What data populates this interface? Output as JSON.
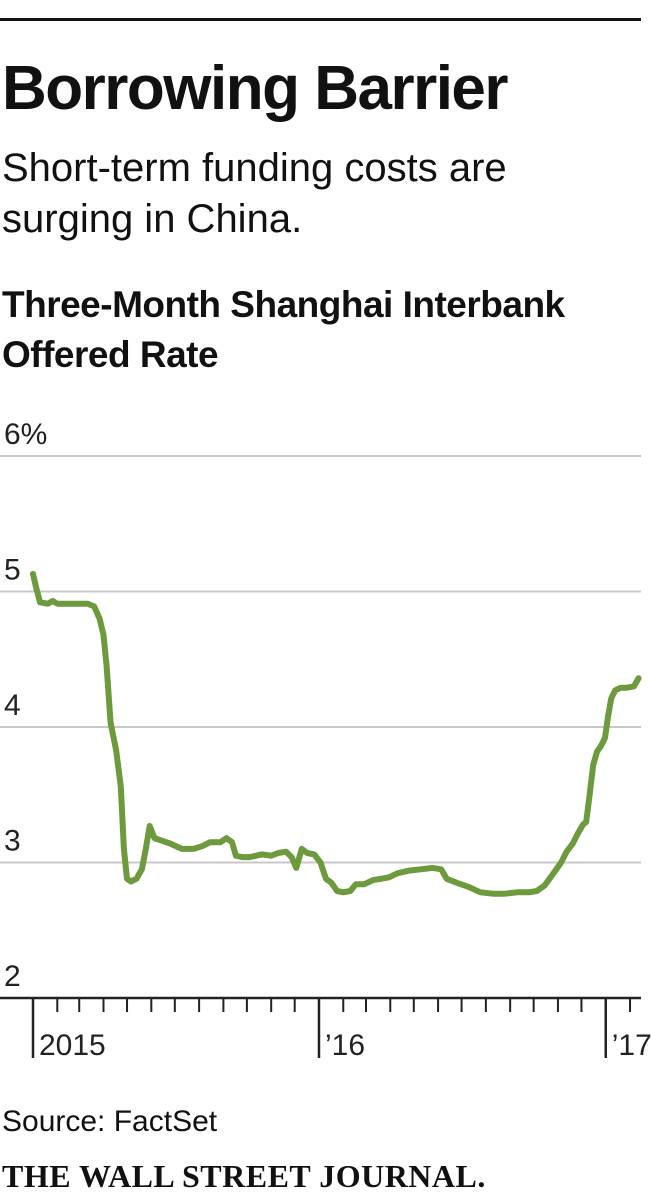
{
  "header": {
    "title": "Borrowing Barrier",
    "subtitle": "Short-term funding costs are surging in China."
  },
  "chart_data": {
    "type": "line",
    "title": "Three-Month Shanghai Interbank Offered Rate",
    "xlabel": "",
    "ylabel": "",
    "ylim": [
      2,
      6
    ],
    "xlim": [
      "2015-01-01",
      "2017-02-15"
    ],
    "y_ticks": [
      {
        "value": 6,
        "label": "6%"
      },
      {
        "value": 5,
        "label": "5"
      },
      {
        "value": 4,
        "label": "4"
      },
      {
        "value": 3,
        "label": "3"
      },
      {
        "value": 2,
        "label": "2"
      }
    ],
    "x_major_ticks": [
      {
        "date": "2015-01-01",
        "label": "2015"
      },
      {
        "date": "2016-01-01",
        "label": "’16"
      },
      {
        "date": "2017-01-01",
        "label": "’17"
      }
    ],
    "grid": true,
    "colors": {
      "series": "#6c9a3c",
      "grid": "#c8c8c8",
      "axis": "#222222"
    },
    "series": [
      {
        "name": "",
        "points": [
          [
            "2015-01-01",
            5.13
          ],
          [
            "2015-01-05",
            5.03
          ],
          [
            "2015-01-10",
            4.92
          ],
          [
            "2015-01-20",
            4.91
          ],
          [
            "2015-01-26",
            4.93
          ],
          [
            "2015-02-01",
            4.91
          ],
          [
            "2015-02-15",
            4.91
          ],
          [
            "2015-03-01",
            4.91
          ],
          [
            "2015-03-12",
            4.91
          ],
          [
            "2015-03-20",
            4.89
          ],
          [
            "2015-03-27",
            4.8
          ],
          [
            "2015-04-01",
            4.68
          ],
          [
            "2015-04-05",
            4.45
          ],
          [
            "2015-04-10",
            4.03
          ],
          [
            "2015-04-17",
            3.83
          ],
          [
            "2015-04-23",
            3.56
          ],
          [
            "2015-04-27",
            3.1
          ],
          [
            "2015-05-01",
            2.88
          ],
          [
            "2015-05-06",
            2.86
          ],
          [
            "2015-05-13",
            2.88
          ],
          [
            "2015-05-20",
            2.95
          ],
          [
            "2015-05-25",
            3.1
          ],
          [
            "2015-05-30",
            3.27
          ],
          [
            "2015-06-05",
            3.18
          ],
          [
            "2015-06-15",
            3.16
          ],
          [
            "2015-06-25",
            3.14
          ],
          [
            "2015-07-10",
            3.1
          ],
          [
            "2015-07-25",
            3.1
          ],
          [
            "2015-08-05",
            3.12
          ],
          [
            "2015-08-15",
            3.15
          ],
          [
            "2015-08-28",
            3.15
          ],
          [
            "2015-09-05",
            3.18
          ],
          [
            "2015-09-12",
            3.15
          ],
          [
            "2015-09-17",
            3.05
          ],
          [
            "2015-09-25",
            3.04
          ],
          [
            "2015-10-05",
            3.04
          ],
          [
            "2015-10-20",
            3.06
          ],
          [
            "2015-11-01",
            3.05
          ],
          [
            "2015-11-10",
            3.07
          ],
          [
            "2015-11-20",
            3.08
          ],
          [
            "2015-11-27",
            3.04
          ],
          [
            "2015-12-03",
            2.96
          ],
          [
            "2015-12-10",
            3.1
          ],
          [
            "2015-12-17",
            3.07
          ],
          [
            "2015-12-26",
            3.06
          ],
          [
            "2016-01-03",
            3.0
          ],
          [
            "2016-01-10",
            2.88
          ],
          [
            "2016-01-17",
            2.85
          ],
          [
            "2016-01-24",
            2.79
          ],
          [
            "2016-02-01",
            2.78
          ],
          [
            "2016-02-10",
            2.79
          ],
          [
            "2016-02-17",
            2.84
          ],
          [
            "2016-02-28",
            2.84
          ],
          [
            "2016-03-10",
            2.87
          ],
          [
            "2016-03-20",
            2.88
          ],
          [
            "2016-03-30",
            2.89
          ],
          [
            "2016-04-10",
            2.92
          ],
          [
            "2016-04-25",
            2.94
          ],
          [
            "2016-05-10",
            2.95
          ],
          [
            "2016-05-25",
            2.96
          ],
          [
            "2016-06-05",
            2.95
          ],
          [
            "2016-06-12",
            2.88
          ],
          [
            "2016-06-25",
            2.85
          ],
          [
            "2016-07-10",
            2.82
          ],
          [
            "2016-07-25",
            2.78
          ],
          [
            "2016-08-10",
            2.77
          ],
          [
            "2016-08-25",
            2.77
          ],
          [
            "2016-09-10",
            2.78
          ],
          [
            "2016-09-25",
            2.78
          ],
          [
            "2016-10-05",
            2.79
          ],
          [
            "2016-10-15",
            2.83
          ],
          [
            "2016-10-25",
            2.91
          ],
          [
            "2016-11-05",
            3.0
          ],
          [
            "2016-11-12",
            3.08
          ],
          [
            "2016-11-20",
            3.14
          ],
          [
            "2016-11-27",
            3.22
          ],
          [
            "2016-12-03",
            3.28
          ],
          [
            "2016-12-07",
            3.3
          ],
          [
            "2016-12-11",
            3.48
          ],
          [
            "2016-12-16",
            3.72
          ],
          [
            "2016-12-21",
            3.82
          ],
          [
            "2016-12-26",
            3.86
          ],
          [
            "2016-12-31",
            3.92
          ],
          [
            "2017-01-04",
            4.08
          ],
          [
            "2017-01-08",
            4.21
          ],
          [
            "2017-01-13",
            4.27
          ],
          [
            "2017-01-20",
            4.29
          ],
          [
            "2017-01-28",
            4.29
          ],
          [
            "2017-02-06",
            4.3
          ],
          [
            "2017-02-12",
            4.36
          ]
        ]
      }
    ]
  },
  "footer": {
    "source": "Source: FactSet",
    "publisher": "THE WALL STREET JOURNAL."
  }
}
